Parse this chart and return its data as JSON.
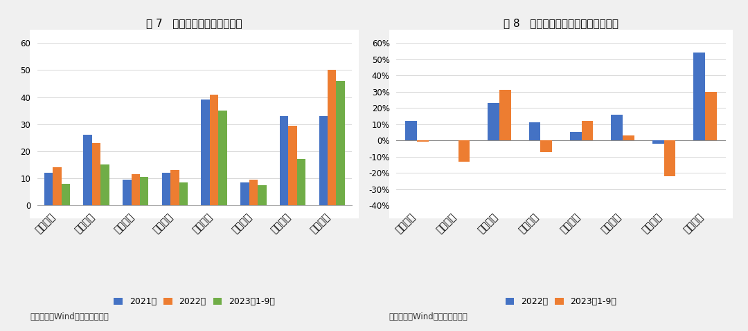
{
  "fig7": {
    "title": "图 7   样本企业营业总收入对比",
    "categories": [
      "安吉租赁",
      "奔驰租赁",
      "广汽租赁",
      "先锋租赁",
      "一汽租赁",
      "智慧租赁",
      "狮桥租赁",
      "易鑫租赁"
    ],
    "series": {
      "2021年": [
        12,
        26,
        9.5,
        12,
        39,
        8.5,
        33,
        33
      ],
      "2022年": [
        14,
        23,
        11.5,
        13,
        41,
        9.5,
        29.5,
        50
      ],
      "2023年1-9月": [
        8,
        15,
        10.5,
        8.5,
        35,
        7.5,
        17,
        46
      ]
    },
    "colors": {
      "2021年": "#4472C4",
      "2022年": "#ED7D31",
      "2023年1-9月": "#70AD47"
    },
    "ylim": [
      0,
      60
    ],
    "yticks": [
      0,
      10,
      20,
      30,
      40,
      50,
      60
    ],
    "legend_labels": [
      "2021年",
      "2022年",
      "2023年1-9月"
    ],
    "source": "资料来源：Wind，联合资信整理"
  },
  "fig8": {
    "title": "图 8   样本企业营业总收入同比变动率",
    "categories": [
      "安吉租赁",
      "奔驰租赁",
      "广汽租赁",
      "先锋租赁",
      "一汽租赁",
      "智慧租赁",
      "狮桥租赁",
      "易鑫租赁"
    ],
    "series": {
      "2022年": [
        12,
        0,
        23,
        11,
        5,
        16,
        -2,
        54
      ],
      "2023年1-9月": [
        -1,
        -13,
        31,
        -7,
        12,
        3,
        -22,
        30
      ]
    },
    "colors": {
      "2022年": "#4472C4",
      "2023年1-9月": "#ED7D31"
    },
    "ylim": [
      -40,
      60
    ],
    "yticks": [
      -40,
      -30,
      -20,
      -10,
      0,
      10,
      20,
      30,
      40,
      50,
      60
    ],
    "legend_labels": [
      "2022年",
      "2023年1-9月"
    ],
    "source": "资料来源：Wind，联合资信整理"
  },
  "background_color": "#f0f0f0",
  "plot_bg_color": "#ffffff",
  "title_fontsize": 11,
  "tick_fontsize": 8.5,
  "legend_fontsize": 9,
  "source_fontsize": 8.5
}
